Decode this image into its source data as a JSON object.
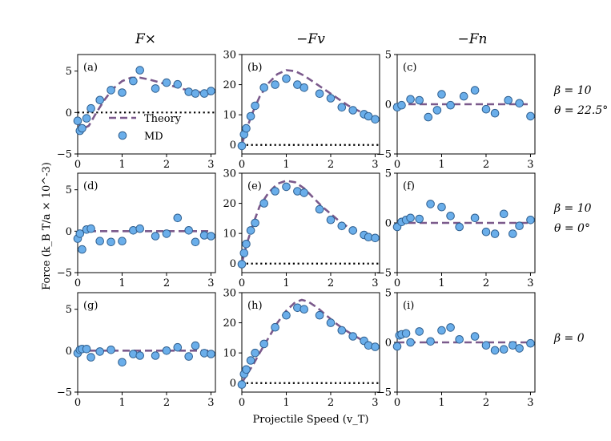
{
  "chart_data": {
    "type": "scatter",
    "xlabel": "Projectile Speed (v_T)",
    "ylabel": "Force (k_B T/a × 10^-3)",
    "column_titles": [
      "F×",
      "−Fv",
      "−Fn"
    ],
    "row_annotations": [
      [
        "β = 10",
        "θ = 22.5°"
      ],
      [
        "β = 10",
        "θ = 0°"
      ],
      [
        "β = 0"
      ]
    ],
    "legend": {
      "theory": "Theory",
      "md": "MD",
      "location": "lower-left of panel (a)"
    },
    "colors": {
      "theory": "#7b5a8c",
      "md_fill": "#6aaeea",
      "md_edge": "#2f5f8f",
      "zero_line": "#000000"
    },
    "xlim": [
      0,
      3.1
    ],
    "xticks": [
      0,
      1,
      2,
      3
    ],
    "panels": [
      {
        "label": "(a)",
        "ylim": [
          -5,
          7
        ],
        "yticks": [
          -5,
          0,
          5
        ],
        "zero_line": true,
        "md": [
          [
            0,
            -1
          ],
          [
            0.05,
            -2.2
          ],
          [
            0.1,
            -1.9
          ],
          [
            0.2,
            -0.7
          ],
          [
            0.3,
            0.5
          ],
          [
            0.5,
            1.5
          ],
          [
            0.75,
            2.7
          ],
          [
            1.0,
            2.4
          ],
          [
            1.25,
            3.8
          ],
          [
            1.4,
            5.1
          ],
          [
            1.75,
            2.9
          ],
          [
            2.0,
            3.6
          ],
          [
            2.25,
            3.4
          ],
          [
            2.5,
            2.5
          ],
          [
            2.65,
            2.3
          ],
          [
            2.85,
            2.3
          ],
          [
            3.0,
            2.6
          ]
        ],
        "theory": [
          [
            0,
            -1.2
          ],
          [
            0.1,
            -2.0
          ],
          [
            0.25,
            -1.6
          ],
          [
            0.4,
            -0.2
          ],
          [
            0.6,
            1.5
          ],
          [
            0.8,
            2.9
          ],
          [
            1.0,
            3.8
          ],
          [
            1.2,
            4.2
          ],
          [
            1.4,
            4.2
          ],
          [
            1.6,
            4.0
          ],
          [
            1.8,
            3.7
          ],
          [
            2.0,
            3.4
          ],
          [
            2.2,
            3.1
          ],
          [
            2.4,
            2.8
          ],
          [
            2.6,
            2.6
          ],
          [
            2.8,
            2.4
          ],
          [
            3.0,
            2.2
          ]
        ]
      },
      {
        "label": "(b)",
        "ylim": [
          -3,
          30
        ],
        "yticks": [
          0,
          10,
          20,
          30
        ],
        "zero_line": true,
        "md": [
          [
            0,
            -0.3
          ],
          [
            0.05,
            3.5
          ],
          [
            0.1,
            5.5
          ],
          [
            0.2,
            9.5
          ],
          [
            0.3,
            13
          ],
          [
            0.5,
            19
          ],
          [
            0.75,
            20
          ],
          [
            1.0,
            22
          ],
          [
            1.25,
            20
          ],
          [
            1.4,
            19
          ],
          [
            1.75,
            17
          ],
          [
            2.0,
            15.5
          ],
          [
            2.25,
            12.5
          ],
          [
            2.5,
            11.5
          ],
          [
            2.75,
            10.2
          ],
          [
            2.85,
            9.5
          ],
          [
            3.0,
            8.5
          ]
        ],
        "theory": [
          [
            0,
            0
          ],
          [
            0.1,
            5
          ],
          [
            0.25,
            11
          ],
          [
            0.4,
            16
          ],
          [
            0.6,
            20.5
          ],
          [
            0.8,
            23.5
          ],
          [
            1.0,
            24.8
          ],
          [
            1.2,
            24.5
          ],
          [
            1.4,
            23
          ],
          [
            1.6,
            21
          ],
          [
            1.8,
            19
          ],
          [
            2.0,
            17
          ],
          [
            2.2,
            15
          ],
          [
            2.4,
            13
          ],
          [
            2.6,
            11.5
          ],
          [
            2.8,
            10
          ],
          [
            3.0,
            8.5
          ]
        ]
      },
      {
        "label": "(c)",
        "ylim": [
          -5,
          5
        ],
        "yticks": [
          -5,
          0,
          5
        ],
        "zero_line": false,
        "md": [
          [
            0,
            -0.3
          ],
          [
            0.1,
            -0.1
          ],
          [
            0.3,
            0.5
          ],
          [
            0.5,
            0.4
          ],
          [
            0.7,
            -1.3
          ],
          [
            0.9,
            -0.6
          ],
          [
            1.0,
            1.0
          ],
          [
            1.2,
            -0.1
          ],
          [
            1.5,
            0.8
          ],
          [
            1.75,
            1.4
          ],
          [
            2.0,
            -0.5
          ],
          [
            2.2,
            -0.9
          ],
          [
            2.5,
            0.4
          ],
          [
            2.75,
            0.1
          ],
          [
            3.0,
            -1.2
          ]
        ],
        "theory": [
          [
            0,
            0
          ],
          [
            3.0,
            0
          ]
        ]
      },
      {
        "label": "(d)",
        "ylim": [
          -5,
          7
        ],
        "yticks": [
          -5,
          0,
          5
        ],
        "zero_line": false,
        "md": [
          [
            0,
            -0.9
          ],
          [
            0.05,
            -0.3
          ],
          [
            0.1,
            -2.2
          ],
          [
            0.2,
            0.2
          ],
          [
            0.3,
            0.3
          ],
          [
            0.5,
            -1.2
          ],
          [
            0.75,
            -1.3
          ],
          [
            1.0,
            -1.2
          ],
          [
            1.25,
            0.1
          ],
          [
            1.4,
            0.3
          ],
          [
            1.75,
            -0.6
          ],
          [
            2.0,
            -0.3
          ],
          [
            2.25,
            1.6
          ],
          [
            2.5,
            0.1
          ],
          [
            2.65,
            -1.3
          ],
          [
            2.85,
            -0.5
          ],
          [
            3.0,
            -0.6
          ]
        ],
        "theory": [
          [
            0,
            0
          ],
          [
            3.0,
            0
          ]
        ]
      },
      {
        "label": "(e)",
        "ylim": [
          -3,
          30
        ],
        "yticks": [
          0,
          10,
          20,
          30
        ],
        "zero_line": true,
        "md": [
          [
            0,
            -0.2
          ],
          [
            0.05,
            3.5
          ],
          [
            0.1,
            6.5
          ],
          [
            0.2,
            11
          ],
          [
            0.3,
            13.5
          ],
          [
            0.5,
            20
          ],
          [
            0.75,
            24
          ],
          [
            1.0,
            25.5
          ],
          [
            1.25,
            24
          ],
          [
            1.4,
            23.5
          ],
          [
            1.75,
            18
          ],
          [
            2.0,
            14.5
          ],
          [
            2.25,
            12.5
          ],
          [
            2.5,
            11
          ],
          [
            2.75,
            9.5
          ],
          [
            2.85,
            8.8
          ],
          [
            3.0,
            8.5
          ]
        ],
        "theory": [
          [
            0,
            0
          ],
          [
            0.1,
            6
          ],
          [
            0.25,
            13
          ],
          [
            0.4,
            19
          ],
          [
            0.6,
            23.5
          ],
          [
            0.8,
            26.5
          ],
          [
            1.0,
            27.5
          ],
          [
            1.2,
            27
          ],
          [
            1.4,
            25
          ],
          [
            1.6,
            22
          ],
          [
            1.8,
            19
          ],
          [
            2.0,
            16.5
          ],
          [
            2.2,
            14
          ],
          [
            2.4,
            12
          ],
          [
            2.6,
            10.5
          ],
          [
            2.8,
            9.3
          ],
          [
            3.0,
            8.3
          ]
        ]
      },
      {
        "label": "(f)",
        "ylim": [
          -5,
          5
        ],
        "yticks": [
          -5,
          0,
          5
        ],
        "zero_line": false,
        "md": [
          [
            0,
            -0.4
          ],
          [
            0.1,
            0.1
          ],
          [
            0.2,
            0.3
          ],
          [
            0.3,
            0.5
          ],
          [
            0.5,
            0.4
          ],
          [
            0.75,
            1.9
          ],
          [
            1.0,
            1.6
          ],
          [
            1.2,
            0.7
          ],
          [
            1.4,
            -0.4
          ],
          [
            1.75,
            0.5
          ],
          [
            2.0,
            -0.9
          ],
          [
            2.2,
            -1.1
          ],
          [
            2.4,
            0.9
          ],
          [
            2.6,
            -1.1
          ],
          [
            2.75,
            -0.3
          ],
          [
            3.0,
            0.3
          ]
        ],
        "theory": [
          [
            0,
            0
          ],
          [
            3.0,
            0
          ]
        ]
      },
      {
        "label": "(g)",
        "ylim": [
          -5,
          7
        ],
        "yticks": [
          -5,
          0,
          5
        ],
        "zero_line": false,
        "md": [
          [
            0,
            -0.3
          ],
          [
            0.05,
            0.1
          ],
          [
            0.1,
            0.2
          ],
          [
            0.2,
            0.2
          ],
          [
            0.3,
            -0.8
          ],
          [
            0.5,
            -0.1
          ],
          [
            0.75,
            0.1
          ],
          [
            1.0,
            -1.4
          ],
          [
            1.25,
            -0.4
          ],
          [
            1.4,
            -0.6
          ],
          [
            1.75,
            -0.6
          ],
          [
            2.0,
            0
          ],
          [
            2.25,
            0.4
          ],
          [
            2.5,
            -0.7
          ],
          [
            2.65,
            0.6
          ],
          [
            2.85,
            -0.3
          ],
          [
            3.0,
            -0.4
          ]
        ],
        "theory": [
          [
            0,
            0
          ],
          [
            3.0,
            0
          ]
        ]
      },
      {
        "label": "(h)",
        "ylim": [
          -3,
          30
        ],
        "yticks": [
          0,
          10,
          20,
          30
        ],
        "zero_line": true,
        "md": [
          [
            0,
            -0.5
          ],
          [
            0.05,
            3
          ],
          [
            0.1,
            4.5
          ],
          [
            0.2,
            7.5
          ],
          [
            0.3,
            10
          ],
          [
            0.5,
            13
          ],
          [
            0.75,
            18.5
          ],
          [
            1.0,
            22.5
          ],
          [
            1.25,
            25
          ],
          [
            1.4,
            24.5
          ],
          [
            1.75,
            22.5
          ],
          [
            2.0,
            20
          ],
          [
            2.25,
            17.5
          ],
          [
            2.5,
            15.5
          ],
          [
            2.75,
            14
          ],
          [
            2.85,
            12.5
          ],
          [
            3.0,
            12
          ]
        ],
        "theory": [
          [
            0,
            0
          ],
          [
            0.1,
            2.5
          ],
          [
            0.25,
            6
          ],
          [
            0.4,
            10
          ],
          [
            0.6,
            15
          ],
          [
            0.8,
            20
          ],
          [
            1.0,
            24
          ],
          [
            1.2,
            26.8
          ],
          [
            1.35,
            27.6
          ],
          [
            1.5,
            27
          ],
          [
            1.7,
            25
          ],
          [
            1.9,
            22.5
          ],
          [
            2.1,
            20
          ],
          [
            2.3,
            17.8
          ],
          [
            2.5,
            16
          ],
          [
            2.7,
            14.3
          ],
          [
            2.9,
            13
          ],
          [
            3.0,
            12.3
          ]
        ]
      },
      {
        "label": "(i)",
        "ylim": [
          -5,
          5
        ],
        "yticks": [
          -5,
          0,
          5
        ],
        "zero_line": false,
        "md": [
          [
            0,
            -0.4
          ],
          [
            0.05,
            0.7
          ],
          [
            0.1,
            0.8
          ],
          [
            0.2,
            0.9
          ],
          [
            0.3,
            0
          ],
          [
            0.5,
            1.1
          ],
          [
            0.75,
            0.1
          ],
          [
            1.0,
            1.2
          ],
          [
            1.2,
            1.5
          ],
          [
            1.4,
            0.3
          ],
          [
            1.75,
            0.6
          ],
          [
            2.0,
            -0.3
          ],
          [
            2.2,
            -0.8
          ],
          [
            2.4,
            -0.7
          ],
          [
            2.6,
            -0.3
          ],
          [
            2.75,
            -0.6
          ],
          [
            3.0,
            -0.1
          ]
        ],
        "theory": [
          [
            0,
            0
          ],
          [
            3.0,
            0
          ]
        ]
      }
    ]
  }
}
